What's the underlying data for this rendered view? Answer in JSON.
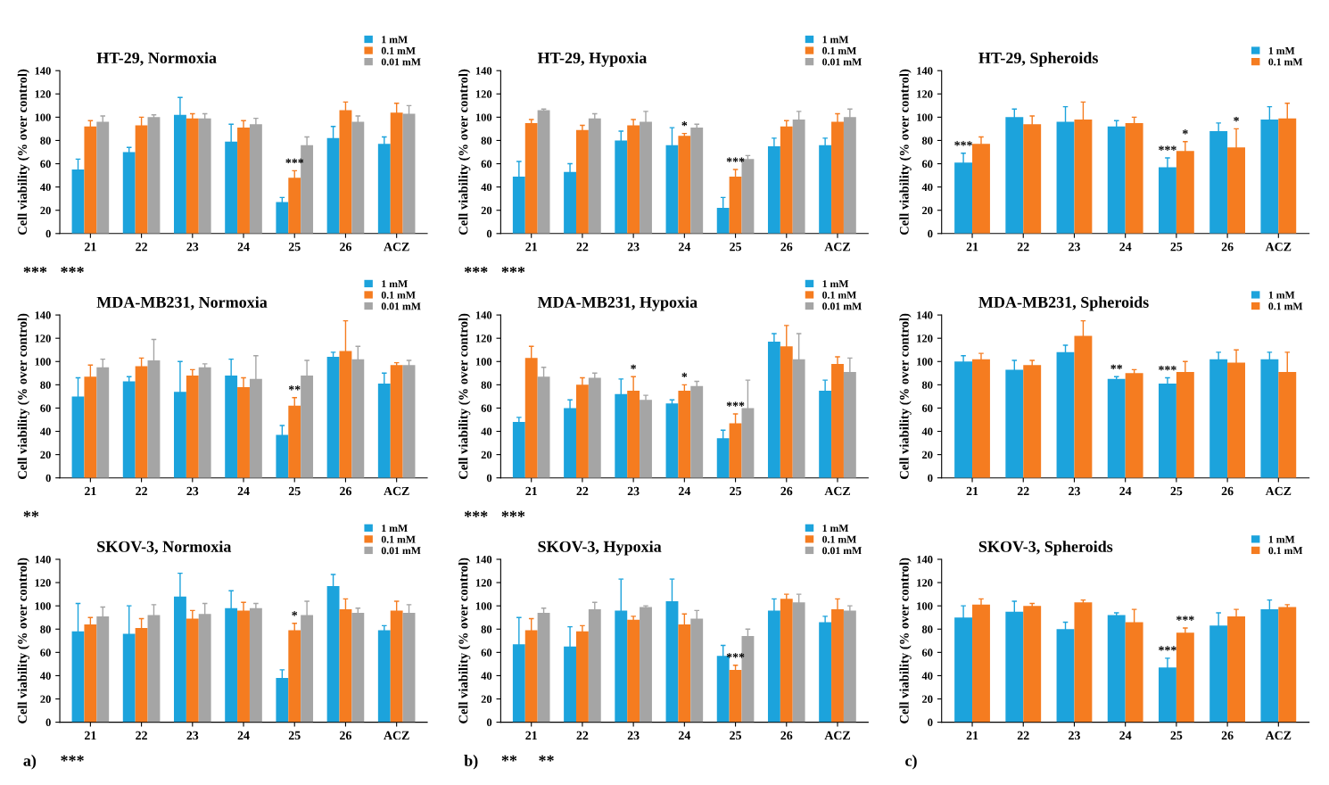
{
  "chart_data": [
    {
      "type": "bar",
      "title": "HT-29, Normoxia",
      "ylabel": "Cell viability (% over control)",
      "categories": [
        "21",
        "22",
        "23",
        "24",
        "25",
        "26",
        "ACZ"
      ],
      "ylim": [
        0,
        140
      ],
      "yticks": [
        0,
        20,
        40,
        60,
        80,
        100,
        120,
        140
      ],
      "legend": "top right",
      "grid": false,
      "series": [
        {
          "name": "1 mM",
          "color": "#1ca3dc",
          "values": [
            55,
            70,
            102,
            79,
            27,
            82,
            77
          ],
          "errors": [
            9,
            4,
            15,
            15,
            4,
            10,
            6
          ]
        },
        {
          "name": "0.1 mM",
          "color": "#f57c20",
          "values": [
            92,
            93,
            99,
            91,
            48,
            106,
            104
          ],
          "errors": [
            5,
            7,
            4,
            6,
            6,
            7,
            8
          ]
        },
        {
          "name": "0.01 mM",
          "color": "#a5a5a5",
          "values": [
            96,
            100,
            99,
            94,
            76,
            96,
            103
          ],
          "errors": [
            5,
            2,
            4,
            5,
            7,
            5,
            7
          ]
        }
      ],
      "annotations": [
        {
          "text": "***",
          "x": "25",
          "y": 48
        },
        "***",
        "***"
      ]
    },
    {
      "type": "bar",
      "title": "HT-29, Hypoxia",
      "ylabel": "Cell viability (% over control)",
      "categories": [
        "21",
        "22",
        "23",
        "24",
        "25",
        "26",
        "ACZ"
      ],
      "ylim": [
        0,
        140
      ],
      "yticks": [
        0,
        20,
        40,
        60,
        80,
        100,
        120,
        140
      ],
      "legend": "top right",
      "grid": false,
      "series": [
        {
          "name": "1 mM",
          "color": "#1ca3dc",
          "values": [
            49,
            53,
            80,
            76,
            22,
            75,
            76
          ],
          "errors": [
            13,
            7,
            8,
            15,
            9,
            7,
            6
          ]
        },
        {
          "name": "0.1 mM",
          "color": "#f57c20",
          "values": [
            95,
            89,
            93,
            84,
            49,
            92,
            96
          ],
          "errors": [
            3,
            4,
            5,
            2,
            6,
            5,
            7
          ]
        },
        {
          "name": "0.01 mM",
          "color": "#a5a5a5",
          "values": [
            106,
            99,
            96,
            91,
            64,
            98,
            100
          ],
          "errors": [
            1,
            4,
            9,
            3,
            3,
            7,
            7
          ]
        }
      ],
      "annotations": [
        {
          "text": "*",
          "x": "24",
          "y": 84
        },
        {
          "text": "***",
          "x": "25",
          "y": 49
        },
        "***",
        "***"
      ]
    },
    {
      "type": "bar",
      "title": "HT-29, Spheroids",
      "ylabel": "Cell viability (% over control)",
      "categories": [
        "21",
        "22",
        "23",
        "24",
        "25",
        "26",
        "ACZ"
      ],
      "ylim": [
        0,
        140
      ],
      "yticks": [
        0,
        20,
        40,
        60,
        80,
        100,
        120,
        140
      ],
      "legend": "top right",
      "grid": false,
      "series": [
        {
          "name": "1 mM",
          "color": "#1ca3dc",
          "values": [
            61,
            100,
            96,
            92,
            57,
            88,
            98
          ],
          "errors": [
            8,
            7,
            13,
            5,
            8,
            7,
            11
          ]
        },
        {
          "name": "0.1 mM",
          "color": "#f57c20",
          "values": [
            77,
            94,
            98,
            95,
            71,
            74,
            99
          ],
          "errors": [
            6,
            7,
            15,
            5,
            8,
            16,
            13
          ]
        }
      ],
      "annotations": [
        {
          "text": "***",
          "x": "21",
          "y": 61
        },
        {
          "text": "***",
          "x": "25",
          "y": 57
        },
        {
          "text": "*",
          "x": "25",
          "y": 71
        },
        {
          "text": "*",
          "x": "26",
          "y": 74
        }
      ]
    },
    {
      "type": "bar",
      "title": "MDA-MB231, Normoxia",
      "ylabel": "Cell viability (% over control)",
      "categories": [
        "21",
        "22",
        "23",
        "24",
        "25",
        "26",
        "ACZ"
      ],
      "ylim": [
        0,
        140
      ],
      "yticks": [
        0,
        20,
        40,
        60,
        80,
        100,
        120,
        140
      ],
      "legend": "top right",
      "grid": false,
      "series": [
        {
          "name": "1 mM",
          "color": "#1ca3dc",
          "values": [
            70,
            83,
            74,
            88,
            37,
            104,
            81
          ],
          "errors": [
            16,
            4,
            26,
            14,
            8,
            4,
            9
          ]
        },
        {
          "name": "0.1 mM",
          "color": "#f57c20",
          "values": [
            87,
            96,
            88,
            78,
            62,
            109,
            97
          ],
          "errors": [
            10,
            7,
            5,
            8,
            7,
            26,
            2
          ]
        },
        {
          "name": "0.01 mM",
          "color": "#a5a5a5",
          "values": [
            95,
            101,
            95,
            85,
            88,
            102,
            97
          ],
          "errors": [
            7,
            18,
            3,
            20,
            13,
            11,
            4
          ]
        }
      ],
      "annotations": [
        {
          "text": "**",
          "x": "25",
          "y": 62
        },
        "**"
      ]
    },
    {
      "type": "bar",
      "title": "MDA-MB231, Hypoxia",
      "ylabel": "Cell viability (% over control)",
      "categories": [
        "21",
        "22",
        "23",
        "24",
        "25",
        "26",
        "ACZ"
      ],
      "ylim": [
        0,
        140
      ],
      "yticks": [
        0,
        20,
        40,
        60,
        80,
        100,
        120,
        140
      ],
      "legend": "top right",
      "grid": false,
      "series": [
        {
          "name": "1 mM",
          "color": "#1ca3dc",
          "values": [
            48,
            60,
            72,
            64,
            34,
            117,
            75
          ],
          "errors": [
            4,
            7,
            13,
            3,
            7,
            7,
            9
          ]
        },
        {
          "name": "0.1 mM",
          "color": "#f57c20",
          "values": [
            103,
            80,
            75,
            75,
            47,
            113,
            98
          ],
          "errors": [
            10,
            6,
            12,
            5,
            8,
            18,
            6
          ]
        },
        {
          "name": "0.01 mM",
          "color": "#a5a5a5",
          "values": [
            87,
            86,
            67,
            79,
            60,
            102,
            91
          ],
          "errors": [
            8,
            4,
            4,
            4,
            24,
            22,
            12
          ]
        }
      ],
      "annotations": [
        {
          "text": "*",
          "x": "23",
          "y": 75
        },
        {
          "text": "*",
          "x": "24",
          "y": 75
        },
        {
          "text": "***",
          "x": "25",
          "y": 47
        },
        "***",
        "***"
      ]
    },
    {
      "type": "bar",
      "title": "MDA-MB231, Spheroids",
      "ylabel": "Cell viability (% over control)",
      "categories": [
        "21",
        "22",
        "23",
        "24",
        "25",
        "26",
        "ACZ"
      ],
      "ylim": [
        0,
        140
      ],
      "yticks": [
        0,
        20,
        40,
        60,
        80,
        100,
        120,
        140
      ],
      "legend": "top right",
      "grid": false,
      "series": [
        {
          "name": "1 mM",
          "color": "#1ca3dc",
          "values": [
            100,
            93,
            108,
            85,
            81,
            102,
            102
          ],
          "errors": [
            5,
            8,
            6,
            2,
            5,
            6,
            6
          ]
        },
        {
          "name": "0.1 mM",
          "color": "#f57c20",
          "values": [
            102,
            97,
            122,
            90,
            91,
            99,
            91
          ],
          "errors": [
            5,
            4,
            13,
            3,
            9,
            11,
            17
          ]
        }
      ],
      "annotations": [
        {
          "text": "**",
          "x": "24",
          "y": 85
        },
        {
          "text": "***",
          "x": "25",
          "y": 81
        }
      ]
    },
    {
      "type": "bar",
      "title": "SKOV-3, Normoxia",
      "ylabel": "Cell viability (% over control)",
      "categories": [
        "21",
        "22",
        "23",
        "24",
        "25",
        "26",
        "ACZ"
      ],
      "ylim": [
        0,
        140
      ],
      "yticks": [
        0,
        20,
        40,
        60,
        80,
        100,
        120,
        140
      ],
      "legend": "top right",
      "grid": false,
      "series": [
        {
          "name": "1 mM",
          "color": "#1ca3dc",
          "values": [
            78,
            76,
            108,
            98,
            38,
            117,
            79
          ],
          "errors": [
            24,
            24,
            20,
            15,
            7,
            10,
            4
          ]
        },
        {
          "name": "0.1 mM",
          "color": "#f57c20",
          "values": [
            84,
            81,
            89,
            96,
            79,
            97,
            96
          ],
          "errors": [
            6,
            8,
            7,
            7,
            6,
            9,
            8
          ]
        },
        {
          "name": "0.01 mM",
          "color": "#a5a5a5",
          "values": [
            91,
            92,
            93,
            98,
            92,
            94,
            94
          ],
          "errors": [
            8,
            9,
            9,
            4,
            12,
            4,
            7
          ]
        }
      ],
      "annotations": [
        "a)",
        {
          "text": "*",
          "x": "25",
          "y": 79
        },
        "***"
      ]
    },
    {
      "type": "bar",
      "title": "SKOV-3, Hypoxia",
      "ylabel": "Cell viability (% over control)",
      "categories": [
        "21",
        "22",
        "23",
        "24",
        "25",
        "26",
        "ACZ"
      ],
      "ylim": [
        0,
        140
      ],
      "yticks": [
        0,
        20,
        40,
        60,
        80,
        100,
        120,
        140
      ],
      "legend": "top right",
      "grid": false,
      "series": [
        {
          "name": "1 mM",
          "color": "#1ca3dc",
          "values": [
            67,
            65,
            96,
            104,
            57,
            96,
            86
          ],
          "errors": [
            23,
            17,
            27,
            19,
            9,
            10,
            5
          ]
        },
        {
          "name": "0.1 mM",
          "color": "#f57c20",
          "values": [
            79,
            78,
            88,
            84,
            45,
            106,
            97
          ],
          "errors": [
            10,
            5,
            3,
            9,
            4,
            4,
            9
          ]
        },
        {
          "name": "0.01 mM",
          "color": "#a5a5a5",
          "values": [
            94,
            97,
            99,
            89,
            74,
            103,
            96
          ],
          "errors": [
            4,
            6,
            1,
            7,
            6,
            7,
            4
          ]
        }
      ],
      "annotations": [
        "b)",
        {
          "text": "***",
          "x": "25",
          "y": 45
        },
        "**",
        "**"
      ]
    },
    {
      "type": "bar",
      "title": "SKOV-3, Spheroids",
      "ylabel": "Cell viability (% over control)",
      "categories": [
        "21",
        "22",
        "23",
        "24",
        "25",
        "26",
        "ACZ"
      ],
      "ylim": [
        0,
        140
      ],
      "yticks": [
        0,
        20,
        40,
        60,
        80,
        100,
        120,
        140
      ],
      "legend": "top right",
      "grid": false,
      "series": [
        {
          "name": "1 mM",
          "color": "#1ca3dc",
          "values": [
            90,
            95,
            80,
            92,
            47,
            83,
            97
          ],
          "errors": [
            10,
            9,
            6,
            2,
            8,
            11,
            8
          ]
        },
        {
          "name": "0.1 mM",
          "color": "#f57c20",
          "values": [
            101,
            100,
            103,
            86,
            77,
            91,
            99
          ],
          "errors": [
            5,
            2,
            2,
            11,
            4,
            6,
            2
          ]
        }
      ],
      "annotations": [
        {
          "text": "***",
          "x": "25",
          "y": 47
        },
        {
          "text": "***",
          "x": "25",
          "y": 77
        },
        "c)"
      ]
    }
  ]
}
